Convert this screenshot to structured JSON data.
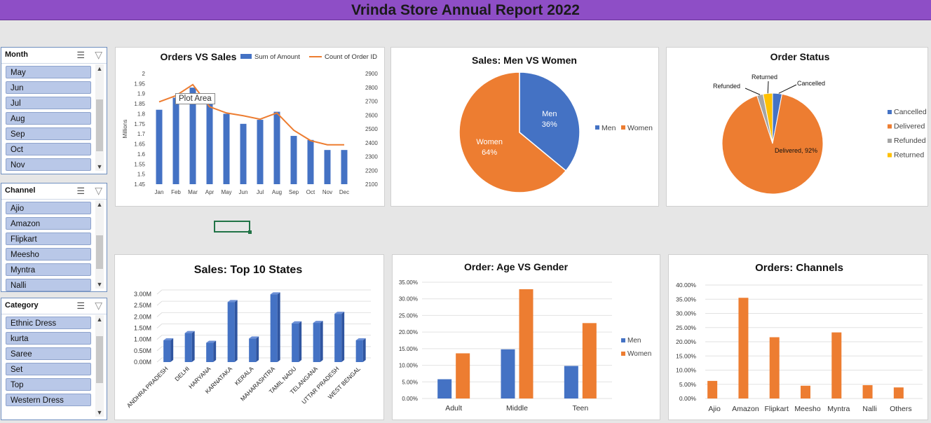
{
  "header": {
    "title": "Vrinda Store Annual Report 2022"
  },
  "slicers": [
    {
      "title": "Month",
      "items": [
        "May",
        "Jun",
        "Jul",
        "Aug",
        "Sep",
        "Oct",
        "Nov"
      ]
    },
    {
      "title": "Channel",
      "items": [
        "Ajio",
        "Amazon",
        "Flipkart",
        "Meesho",
        "Myntra",
        "Nalli"
      ]
    },
    {
      "title": "Category",
      "items": [
        "Ethnic Dress",
        "kurta",
        "Saree",
        "Set",
        "Top",
        "Western Dress"
      ]
    }
  ],
  "tooltip": "Plot Area",
  "colors": {
    "blue": "#4472c4",
    "orange": "#ed7d31",
    "gray": "#a5a5a5",
    "yellow": "#ffc000",
    "header": "#8e4ec6"
  },
  "chart_data": [
    {
      "id": "orders_vs_sales",
      "type": "bar+line",
      "title": "Orders VS Sales",
      "categories": [
        "Jan",
        "Feb",
        "Mar",
        "Apr",
        "May",
        "Jun",
        "Jul",
        "Aug",
        "Sep",
        "Oct",
        "Nov",
        "Dec"
      ],
      "series": [
        {
          "name": "Sum of Amount",
          "type": "bar",
          "axis": "left",
          "values": [
            1.82,
            1.88,
            1.93,
            1.85,
            1.8,
            1.75,
            1.77,
            1.81,
            1.69,
            1.67,
            1.62,
            1.62
          ]
        },
        {
          "name": "Count of Order ID",
          "type": "line",
          "axis": "right",
          "values": [
            2695,
            2740,
            2820,
            2660,
            2615,
            2595,
            2570,
            2615,
            2490,
            2415,
            2385,
            2385
          ]
        }
      ],
      "ylabel": "Millions",
      "ylim": [
        1.45,
        2.0
      ],
      "yticks": [
        "2",
        "1.95",
        "1.9",
        "1.85",
        "1.8",
        "1.75",
        "1.7",
        "1.65",
        "1.6",
        "1.55",
        "1.5",
        "1.45"
      ],
      "y2lim": [
        2100,
        2900
      ],
      "y2ticks": [
        "2900",
        "2800",
        "2700",
        "2600",
        "2500",
        "2400",
        "2300",
        "2200",
        "2100"
      ],
      "legend": "top-right"
    },
    {
      "id": "men_vs_women",
      "type": "pie",
      "title": "Sales:  Men VS Women",
      "slices": [
        {
          "name": "Men",
          "value": 36,
          "label": "36%"
        },
        {
          "name": "Women",
          "value": 64,
          "label": "64%"
        }
      ],
      "legend": "right"
    },
    {
      "id": "order_status",
      "type": "pie",
      "title": "Order Status",
      "slices": [
        {
          "name": "Cancelled",
          "value": 3
        },
        {
          "name": "Delivered",
          "value": 92,
          "label": "Delivered, 92%"
        },
        {
          "name": "Refunded",
          "value": 2
        },
        {
          "name": "Returned",
          "value": 3
        }
      ],
      "legend": "right"
    },
    {
      "id": "top_states",
      "type": "bar",
      "title": "Sales:  Top 10 States",
      "categories": [
        "ANDHRA PRADESH",
        "DELHI",
        "HARYANA",
        "KARNATAKA",
        "KERALA",
        "MAHARASHTRA",
        "TAMIL NADU",
        "TELANGANA",
        "UTTAR PRADESH",
        "WEST BENGAL"
      ],
      "values": [
        0.96,
        1.28,
        0.85,
        2.65,
        1.04,
        2.99,
        1.71,
        1.73,
        2.13,
        0.96
      ],
      "ylim": [
        0,
        3.0
      ],
      "yticks": [
        "3.00M",
        "2.50M",
        "2.00M",
        "1.50M",
        "1.00M",
        "0.50M",
        "0.00M"
      ]
    },
    {
      "id": "age_vs_gender",
      "type": "bar",
      "title": "Order:  Age VS Gender",
      "categories": [
        "Adult",
        "Middle",
        "Teen"
      ],
      "series": [
        {
          "name": "Men",
          "values": [
            5.8,
            14.8,
            9.8
          ]
        },
        {
          "name": "Women",
          "values": [
            13.6,
            32.9,
            22.7
          ]
        }
      ],
      "ylim": [
        0,
        35
      ],
      "yticks": [
        "35.00%",
        "30.00%",
        "25.00%",
        "20.00%",
        "15.00%",
        "10.00%",
        "5.00%",
        "0.00%"
      ],
      "legend": "right"
    },
    {
      "id": "channels",
      "type": "bar",
      "title": "Orders:  Channels",
      "categories": [
        "Ajio",
        "Amazon",
        "Flipkart",
        "Meesho",
        "Myntra",
        "Nalli",
        "Others"
      ],
      "values": [
        6.2,
        35.5,
        21.6,
        4.5,
        23.3,
        4.7,
        3.9
      ],
      "ylim": [
        0,
        40
      ],
      "yticks": [
        "40.00%",
        "35.00%",
        "30.00%",
        "25.00%",
        "20.00%",
        "15.00%",
        "10.00%",
        "5.00%",
        "0.00%"
      ]
    }
  ]
}
